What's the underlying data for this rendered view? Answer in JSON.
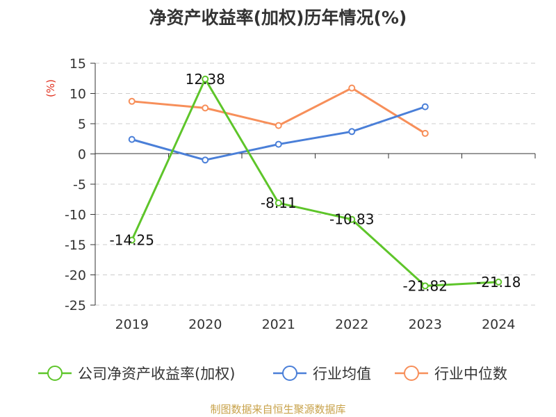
{
  "chart_data": {
    "type": "line",
    "title": "净资产收益率(加权)历年情况(%)",
    "ylabel": "(%)",
    "categories": [
      "2019",
      "2020",
      "2021",
      "2022",
      "2023",
      "2024"
    ],
    "ylim": [
      -25,
      15
    ],
    "yticks": [
      15,
      10,
      5,
      0,
      -5,
      -10,
      -15,
      -20,
      -25
    ],
    "grid": true,
    "legend_position": "bottom",
    "series": [
      {
        "name": "公司净资产收益率(加权)",
        "color": "#5ec52a",
        "values": [
          -14.25,
          12.38,
          -8.11,
          -10.83,
          -21.82,
          -21.18
        ],
        "labels": [
          "-14.25",
          "12.38",
          "-8.11",
          "-10.83",
          "-21.82",
          "-21.18"
        ]
      },
      {
        "name": "行业均值",
        "color": "#4a7fd8",
        "values": [
          2.4,
          -1.0,
          1.6,
          3.7,
          7.8,
          null
        ]
      },
      {
        "name": "行业中位数",
        "color": "#f78f5a",
        "values": [
          8.7,
          7.6,
          4.7,
          10.9,
          3.4,
          null
        ]
      }
    ]
  },
  "footer": {
    "source": "制图数据来自恒生聚源数据库"
  }
}
